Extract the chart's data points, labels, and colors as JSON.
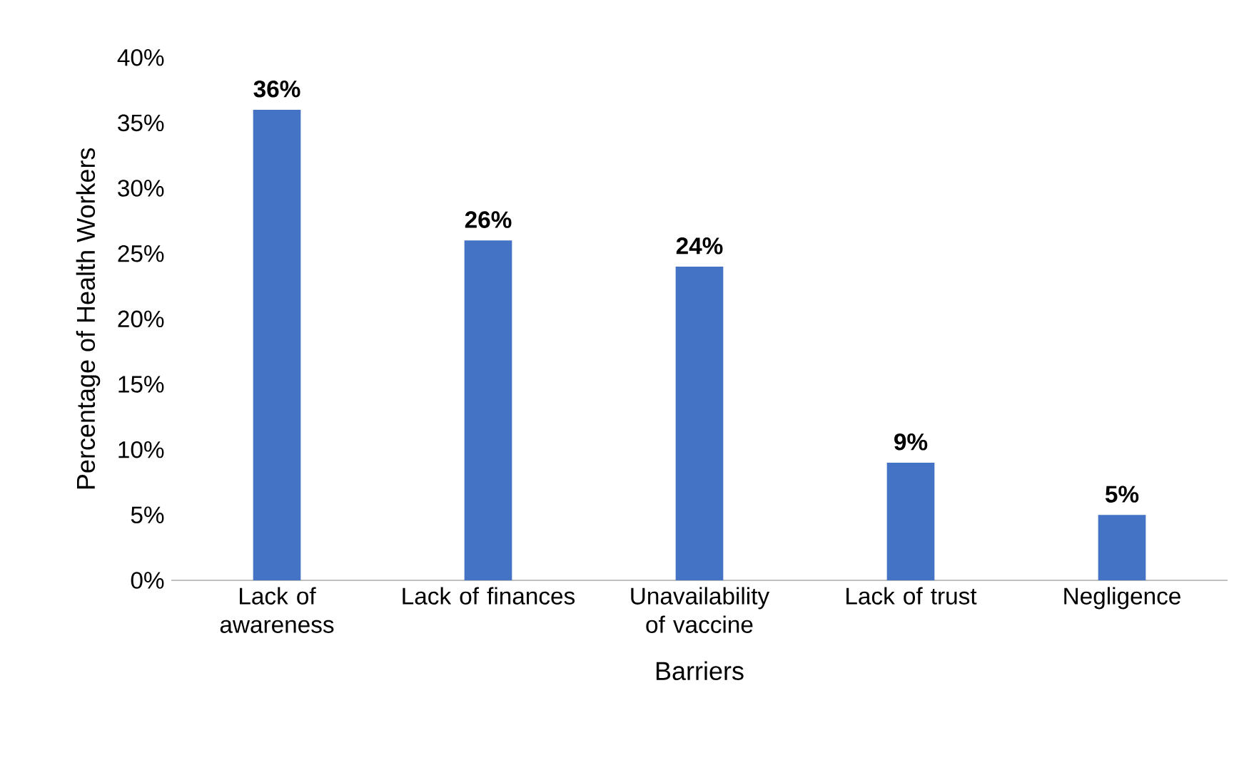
{
  "chart_data": {
    "type": "bar",
    "xlabel": "Barriers",
    "ylabel": "Percentage of Health Workers",
    "categories": [
      "Lack of awareness",
      "Lack of finances",
      "Unavailability of vaccine",
      "Lack of trust",
      "Negligence"
    ],
    "values": [
      36,
      26,
      24,
      9,
      5
    ],
    "value_labels": [
      "36%",
      "26%",
      "24%",
      "9%",
      "5%"
    ],
    "color": "#4472c4",
    "ylim": [
      0,
      40
    ],
    "yticks": [
      {
        "value": 0,
        "label": "0%"
      },
      {
        "value": 5,
        "label": "5%"
      },
      {
        "value": 10,
        "label": "10%"
      },
      {
        "value": 15,
        "label": "15%"
      },
      {
        "value": 20,
        "label": "20%"
      },
      {
        "value": 25,
        "label": "25%"
      },
      {
        "value": 30,
        "label": "30%"
      },
      {
        "value": 35,
        "label": "35%"
      },
      {
        "value": 40,
        "label": "40%"
      }
    ],
    "grid": false
  }
}
